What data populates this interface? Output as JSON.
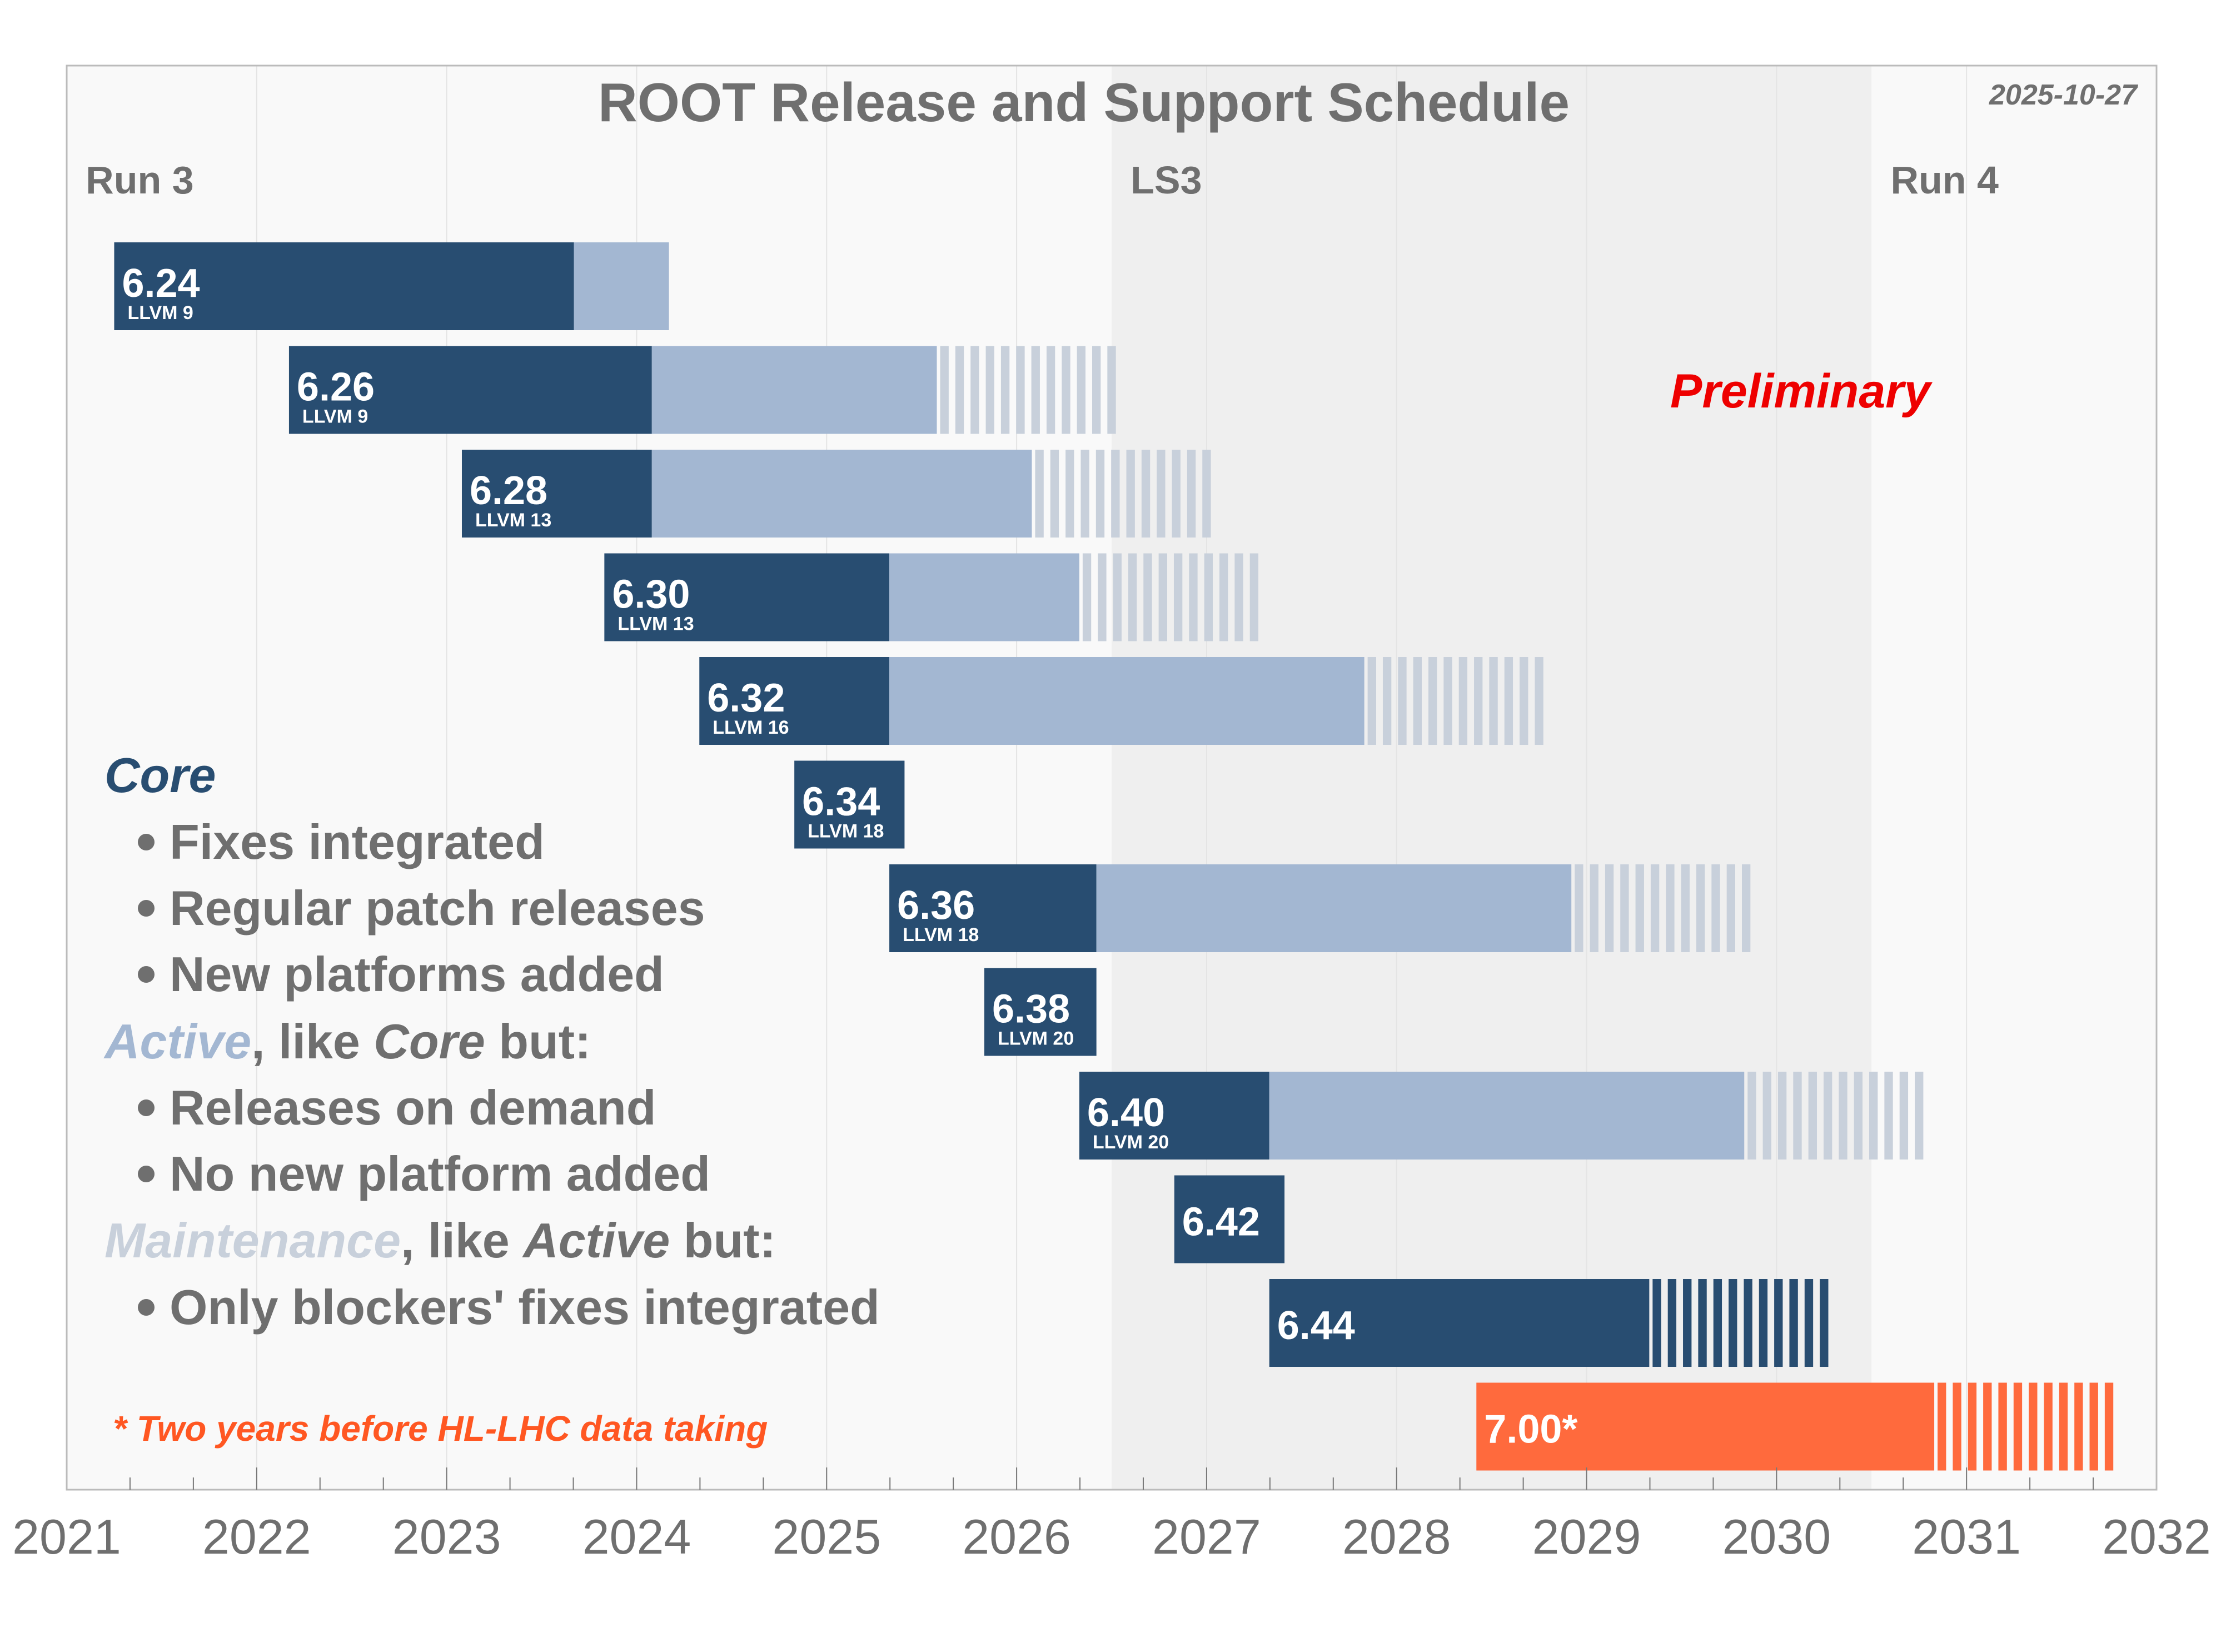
{
  "chart_data": {
    "type": "gantt",
    "title": "ROOT Release and Support Schedule",
    "date": "2025-10-27",
    "watermark": "Preliminary",
    "x_ticks": [
      "2021",
      "2022",
      "2023",
      "2024",
      "2025",
      "2026",
      "2027",
      "2028",
      "2029",
      "2030",
      "2031",
      "2032"
    ],
    "xlim": [
      2021,
      2032
    ],
    "periods": [
      {
        "label": "Run 3",
        "start": 2021.0,
        "end": 2026.5,
        "shade": "#f9f9f9"
      },
      {
        "label": "LS3",
        "start": 2026.5,
        "end": 2030.5,
        "shade": "#efefef"
      },
      {
        "label": "Run 4",
        "start": 2030.5,
        "end": 2032.0,
        "shade": "#f9f9f9"
      }
    ],
    "phases": {
      "core": {
        "label": "Core",
        "color": "#284d71"
      },
      "active": {
        "label": "Active",
        "color": "#a3b7d2"
      },
      "maintenance": {
        "label": "Maintenance",
        "color": "#c8d0db"
      }
    },
    "releases": [
      {
        "version": "6.24",
        "llvm": "LLVM 9",
        "core": [
          2021.25,
          2023.67
        ],
        "active": [
          2023.67,
          2024.17
        ],
        "maintenance": null
      },
      {
        "version": "6.26",
        "llvm": "LLVM 9",
        "core": [
          2022.17,
          2024.08
        ],
        "active": [
          2024.08,
          2025.58
        ],
        "maintenance": [
          2025.58,
          2026.54
        ]
      },
      {
        "version": "6.28",
        "llvm": "LLVM 13",
        "core": [
          2023.08,
          2024.08
        ],
        "active": [
          2024.08,
          2026.08
        ],
        "maintenance": [
          2026.08,
          2027.04
        ]
      },
      {
        "version": "6.30",
        "llvm": "LLVM 13",
        "core": [
          2023.83,
          2025.33
        ],
        "active": [
          2025.33,
          2026.33
        ],
        "maintenance": [
          2026.33,
          2027.29
        ]
      },
      {
        "version": "6.32",
        "llvm": "LLVM 16",
        "core": [
          2024.33,
          2025.33
        ],
        "active": [
          2025.33,
          2027.83
        ],
        "maintenance": [
          2027.83,
          2028.79
        ]
      },
      {
        "version": "6.34",
        "llvm": "LLVM 18",
        "core": [
          2024.83,
          2025.41
        ],
        "active": null,
        "maintenance": null
      },
      {
        "version": "6.36",
        "llvm": "LLVM 18",
        "core": [
          2025.33,
          2026.42
        ],
        "active": [
          2026.42,
          2028.92
        ],
        "maintenance": [
          2028.92,
          2029.88
        ]
      },
      {
        "version": "6.38",
        "llvm": "LLVM 20",
        "core": [
          2025.83,
          2026.42
        ],
        "active": null,
        "maintenance": null
      },
      {
        "version": "6.40",
        "llvm": "LLVM 20",
        "core": [
          2026.33,
          2027.33
        ],
        "active": [
          2027.33,
          2029.83
        ],
        "maintenance": [
          2029.83,
          2030.79
        ]
      },
      {
        "version": "6.42",
        "llvm": "",
        "core": [
          2026.83,
          2027.41
        ],
        "active": null,
        "maintenance": null
      },
      {
        "version": "6.44",
        "llvm": "",
        "core": [
          2027.33,
          2029.33
        ],
        "active": null,
        "maintenance": [
          2029.33,
          2030.29
        ],
        "maintenance_color": "#284d71"
      },
      {
        "version": "7.00*",
        "llvm": "",
        "core": [
          2028.42,
          2030.83
        ],
        "active": null,
        "maintenance": [
          2030.83,
          2031.79
        ],
        "color": "#ff6a3d",
        "maintenance_color": "#ff6a3d"
      }
    ],
    "footnote": "* Two years before HL-LHC data taking",
    "legend": {
      "core_title": "Core",
      "core_items": [
        "Fixes integrated",
        "Regular patch releases",
        "New platforms added"
      ],
      "active_title": "Active",
      "active_suffix_1": ", like ",
      "active_ref": "Core",
      "active_suffix_2": " but:",
      "active_items": [
        "Releases on demand",
        "No new platform added"
      ],
      "maint_title": "Maintenance",
      "maint_suffix_1": ", like ",
      "maint_ref": "Active",
      "maint_suffix_2": " but:",
      "maint_items": [
        "Only blockers' fixes integrated"
      ]
    },
    "colors": {
      "text_gray": "#6f6f6f",
      "red": "#ee0000",
      "orange_text": "#ff5722",
      "frame": "#bbbbbb"
    }
  }
}
